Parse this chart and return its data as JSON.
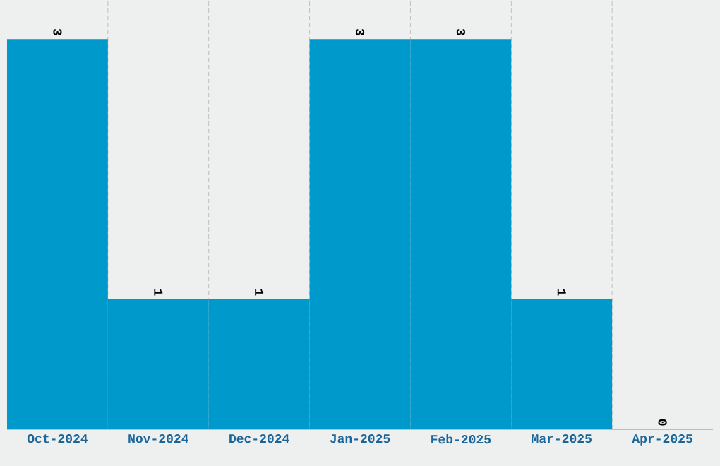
{
  "chart_data": {
    "type": "bar",
    "categories": [
      "Oct-2024",
      "Nov-2024",
      "Dec-2024",
      "Jan-2025",
      "Feb-2025",
      "Mar-2025",
      "Apr-2025"
    ],
    "values": [
      3,
      1,
      1,
      3,
      3,
      1,
      0
    ],
    "color": "#0099cc",
    "ylim": [
      0,
      3.3
    ],
    "tick_labels": "x",
    "grid": "x",
    "data_labels": true
  }
}
